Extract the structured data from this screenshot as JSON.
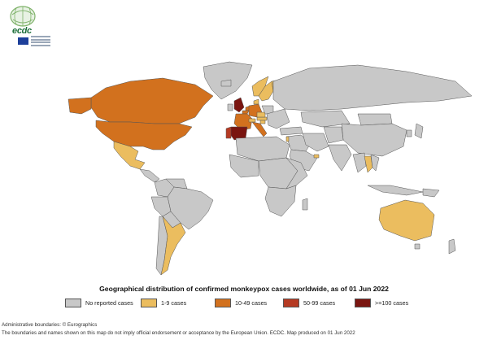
{
  "header": {
    "logo_text": "ecdc"
  },
  "map": {
    "colors": {
      "no_reported": "#c8c8c8",
      "cases_1_9": "#ebbd5f",
      "cases_10_49": "#d2711e",
      "cases_50_99": "#b53a23",
      "cases_100_plus": "#7a1510",
      "ocean": "#ffffff",
      "border": "#555555"
    },
    "countries_by_category": {
      "cases_1_9": [
        "Mexico",
        "Argentina",
        "Australia",
        "Sweden",
        "Finland",
        "Denmark",
        "Norway",
        "Czechia",
        "Austria",
        "Switzerland",
        "Slovenia",
        "Israel",
        "United Arab Emirates",
        "Thailand"
      ],
      "cases_10_49": [
        "Canada",
        "United States",
        "Netherlands",
        "Belgium",
        "France",
        "Germany",
        "Italy"
      ],
      "cases_50_99": [
        "Portugal"
      ],
      "cases_100_plus": [
        "United Kingdom",
        "Spain"
      ]
    }
  },
  "title": "Geographical distribution of confirmed monkeypox cases worldwide, as of 01 Jun 2022",
  "legend": [
    {
      "label": "No reported cases",
      "color": "#c8c8c8"
    },
    {
      "label": "1-9 cases",
      "color": "#ebbd5f"
    },
    {
      "label": "10-49 cases",
      "color": "#d2711e"
    },
    {
      "label": "50-99 cases",
      "color": "#b53a23"
    },
    {
      "label": ">=100 cases",
      "color": "#7a1510"
    }
  ],
  "footer": {
    "boundaries": "Administrative boundaries: © Eurographics",
    "disclaimer": "The boundaries and names shown on this map do not imply official endorsement or acceptance by the European Union. ECDC. Map produced on 01 Jun 2022"
  }
}
